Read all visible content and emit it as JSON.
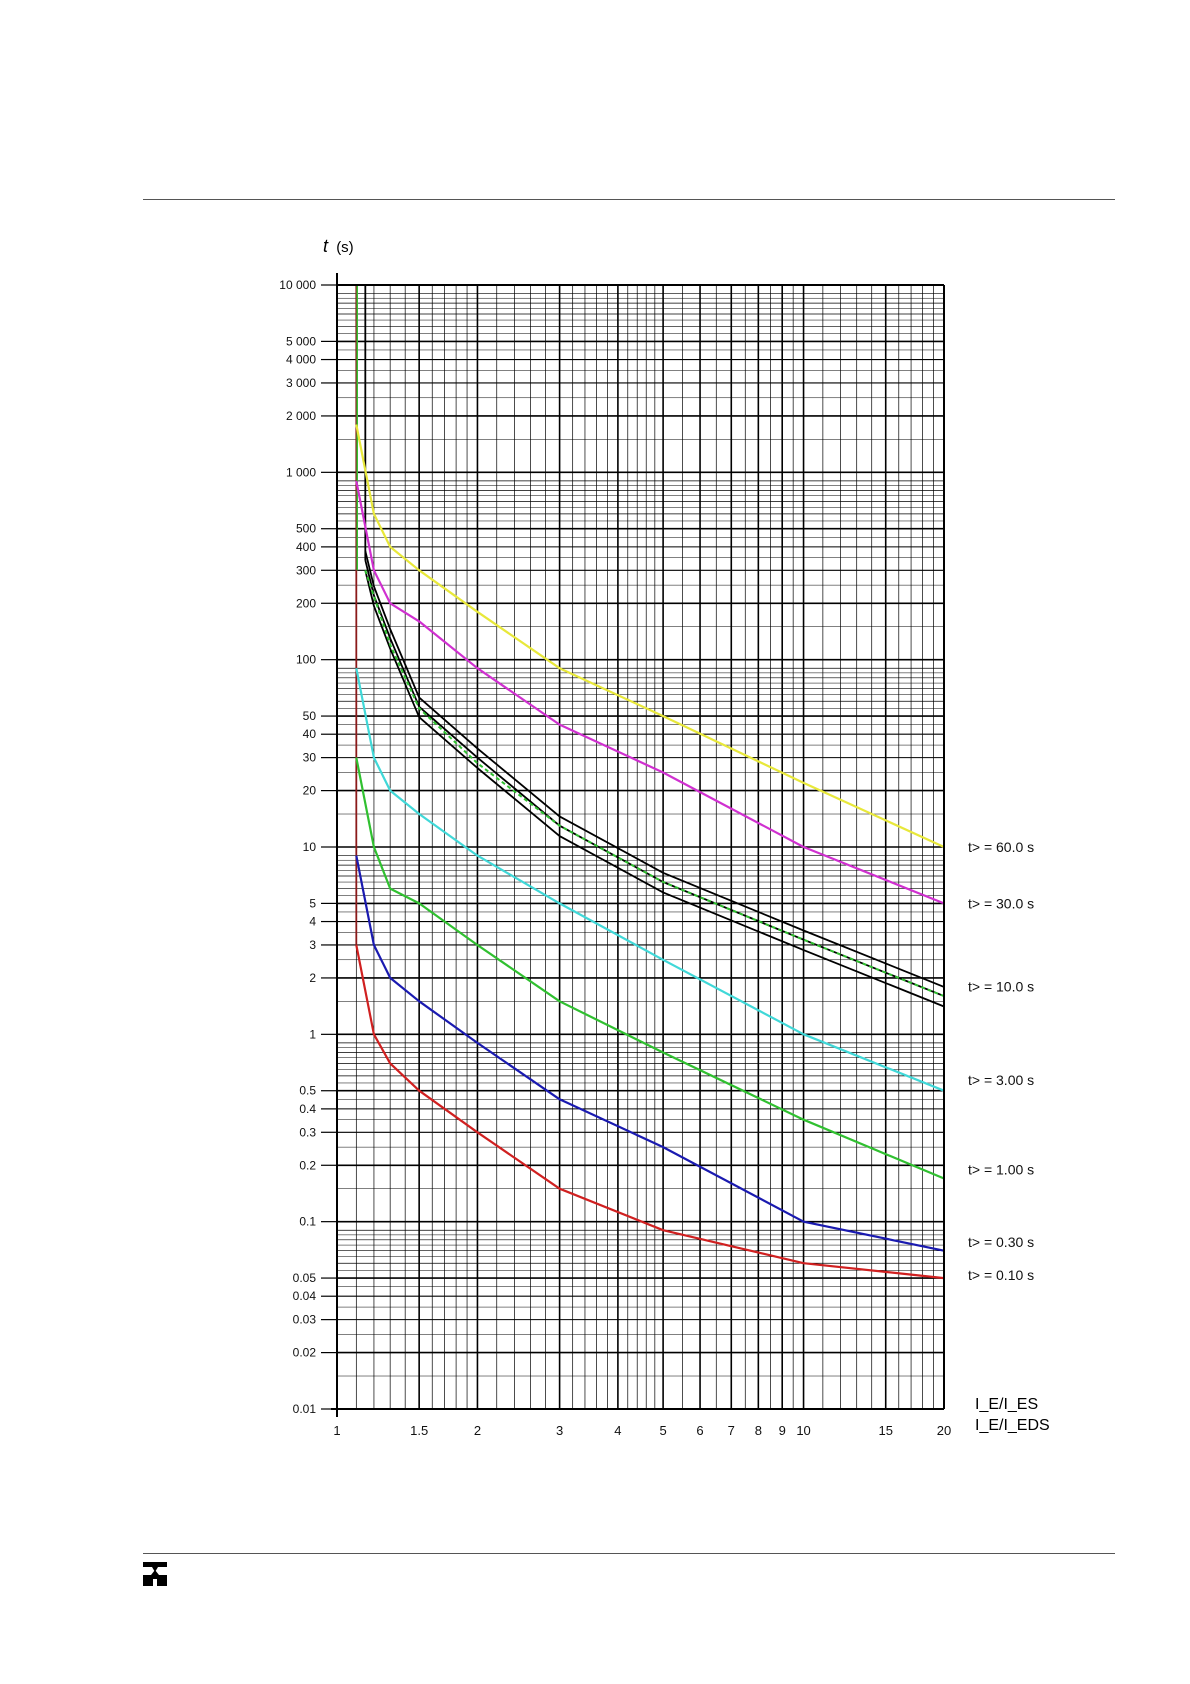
{
  "chart_data": {
    "type": "line",
    "x_scale": "log",
    "y_scale": "log",
    "xlim": [
      1,
      20
    ],
    "ylim": [
      0.01,
      10000
    ],
    "ylabel_var": "t",
    "ylabel_unit": "(s)",
    "xlabel_lines": [
      "I_E/I_ES",
      "I_E/I_EDS"
    ],
    "grid": true,
    "x_tick_labels": [
      {
        "v": 1,
        "label": "1"
      },
      {
        "v": 1.5,
        "label": "1.5"
      },
      {
        "v": 2,
        "label": "2"
      },
      {
        "v": 3,
        "label": "3"
      },
      {
        "v": 4,
        "label": "4"
      },
      {
        "v": 5,
        "label": "5"
      },
      {
        "v": 6,
        "label": "6"
      },
      {
        "v": 7,
        "label": "7"
      },
      {
        "v": 8,
        "label": "8"
      },
      {
        "v": 9,
        "label": "9"
      },
      {
        "v": 10,
        "label": "10"
      },
      {
        "v": 15,
        "label": "15"
      },
      {
        "v": 20,
        "label": "20"
      }
    ],
    "y_tick_labels": [
      {
        "v": 10000,
        "label": "10 000"
      },
      {
        "v": 5000,
        "label": "5 000"
      },
      {
        "v": 4000,
        "label": "4 000"
      },
      {
        "v": 3000,
        "label": "3 000"
      },
      {
        "v": 2000,
        "label": "2 000"
      },
      {
        "v": 1000,
        "label": "1 000"
      },
      {
        "v": 500,
        "label": "500"
      },
      {
        "v": 400,
        "label": "400"
      },
      {
        "v": 300,
        "label": "300"
      },
      {
        "v": 200,
        "label": "200"
      },
      {
        "v": 100,
        "label": "100"
      },
      {
        "v": 50,
        "label": "50"
      },
      {
        "v": 40,
        "label": "40"
      },
      {
        "v": 30,
        "label": "30"
      },
      {
        "v": 20,
        "label": "20"
      },
      {
        "v": 10,
        "label": "10"
      },
      {
        "v": 5,
        "label": "5"
      },
      {
        "v": 4,
        "label": "4"
      },
      {
        "v": 3,
        "label": "3"
      },
      {
        "v": 2,
        "label": "2"
      },
      {
        "v": 1,
        "label": "1"
      },
      {
        "v": 0.5,
        "label": "0.5"
      },
      {
        "v": 0.4,
        "label": "0.4"
      },
      {
        "v": 0.3,
        "label": "0.3"
      },
      {
        "v": 0.2,
        "label": "0.2"
      },
      {
        "v": 0.1,
        "label": "0.1"
      },
      {
        "v": 0.05,
        "label": "0.05"
      },
      {
        "v": 0.04,
        "label": "0.04"
      },
      {
        "v": 0.03,
        "label": "0.03"
      },
      {
        "v": 0.02,
        "label": "0.02"
      },
      {
        "v": 0.01,
        "label": "0.01"
      }
    ],
    "series": [
      {
        "label": "t> = 60.0 s",
        "color": "#e8e83a",
        "x": [
          1.1,
          1.2,
          1.3,
          1.5,
          2,
          3,
          5,
          10,
          20
        ],
        "y": [
          1800,
          600,
          400,
          300,
          180,
          90,
          50,
          22,
          10
        ]
      },
      {
        "label": "t> = 30.0 s",
        "color": "#d030d0",
        "x": [
          1.1,
          1.2,
          1.3,
          1.5,
          2,
          3,
          5,
          10,
          20
        ],
        "y": [
          900,
          300,
          200,
          160,
          90,
          45,
          25,
          10,
          5
        ]
      },
      {
        "label": "t> = 10.0 s",
        "color": "#40d8d8",
        "x": [
          1.1,
          1.2,
          1.3,
          1.5,
          2,
          3,
          5,
          10,
          20
        ],
        "y": [
          90,
          30,
          20,
          15,
          9,
          5,
          2.5,
          1,
          0.5
        ]
      },
      {
        "label": "t> = 1.00 s",
        "color": "#30c030",
        "x": [
          1.1,
          1.2,
          1.3,
          1.5,
          2,
          3,
          5,
          10,
          20
        ],
        "y": [
          30,
          10,
          6,
          5,
          3,
          1.5,
          0.8,
          0.35,
          0.17
        ]
      },
      {
        "label": "t> = 0.30 s",
        "color": "#1a1ab0",
        "x": [
          1.1,
          1.2,
          1.3,
          1.5,
          2,
          3,
          5,
          10,
          20
        ],
        "y": [
          9,
          3,
          2,
          1.5,
          0.9,
          0.45,
          0.25,
          0.1,
          0.07
        ]
      },
      {
        "label": "t> = 0.10 s",
        "color": "#d02020",
        "x": [
          1.1,
          1.2,
          1.3,
          1.5,
          2,
          3,
          5,
          10,
          20
        ],
        "y": [
          3,
          1,
          0.7,
          0.5,
          0.3,
          0.15,
          0.09,
          0.06,
          0.05
        ]
      }
    ],
    "black_curves": {
      "color": "#000000",
      "x": [
        1.15,
        1.2,
        1.3,
        1.5,
        2,
        3,
        5,
        10,
        20
      ],
      "band_center_y": [
        340,
        220,
        130,
        56,
        30,
        13,
        6.5,
        3.2,
        1.6
      ]
    },
    "green_band": {
      "color": "#30c030",
      "x": [
        1.15,
        1.3,
        1.5,
        2,
        3,
        5,
        10,
        20
      ],
      "y": [
        300,
        120,
        55,
        28,
        13,
        6.5,
        3.2,
        1.6
      ]
    },
    "right_labels": [
      {
        "text": "t> = 60.0 s",
        "y": 10
      },
      {
        "text": "t> = 30.0 s",
        "y": 5
      },
      {
        "text": "t> = 10.0 s",
        "y": 1.8
      },
      {
        "text": "t> = 3.00 s",
        "y": 0.57
      },
      {
        "text": "t> = 1.00 s",
        "y": 0.19
      },
      {
        "text": "t> = 0.30 s",
        "y": 0.078
      },
      {
        "text": "t> = 0.10 s",
        "y": 0.052
      }
    ]
  }
}
